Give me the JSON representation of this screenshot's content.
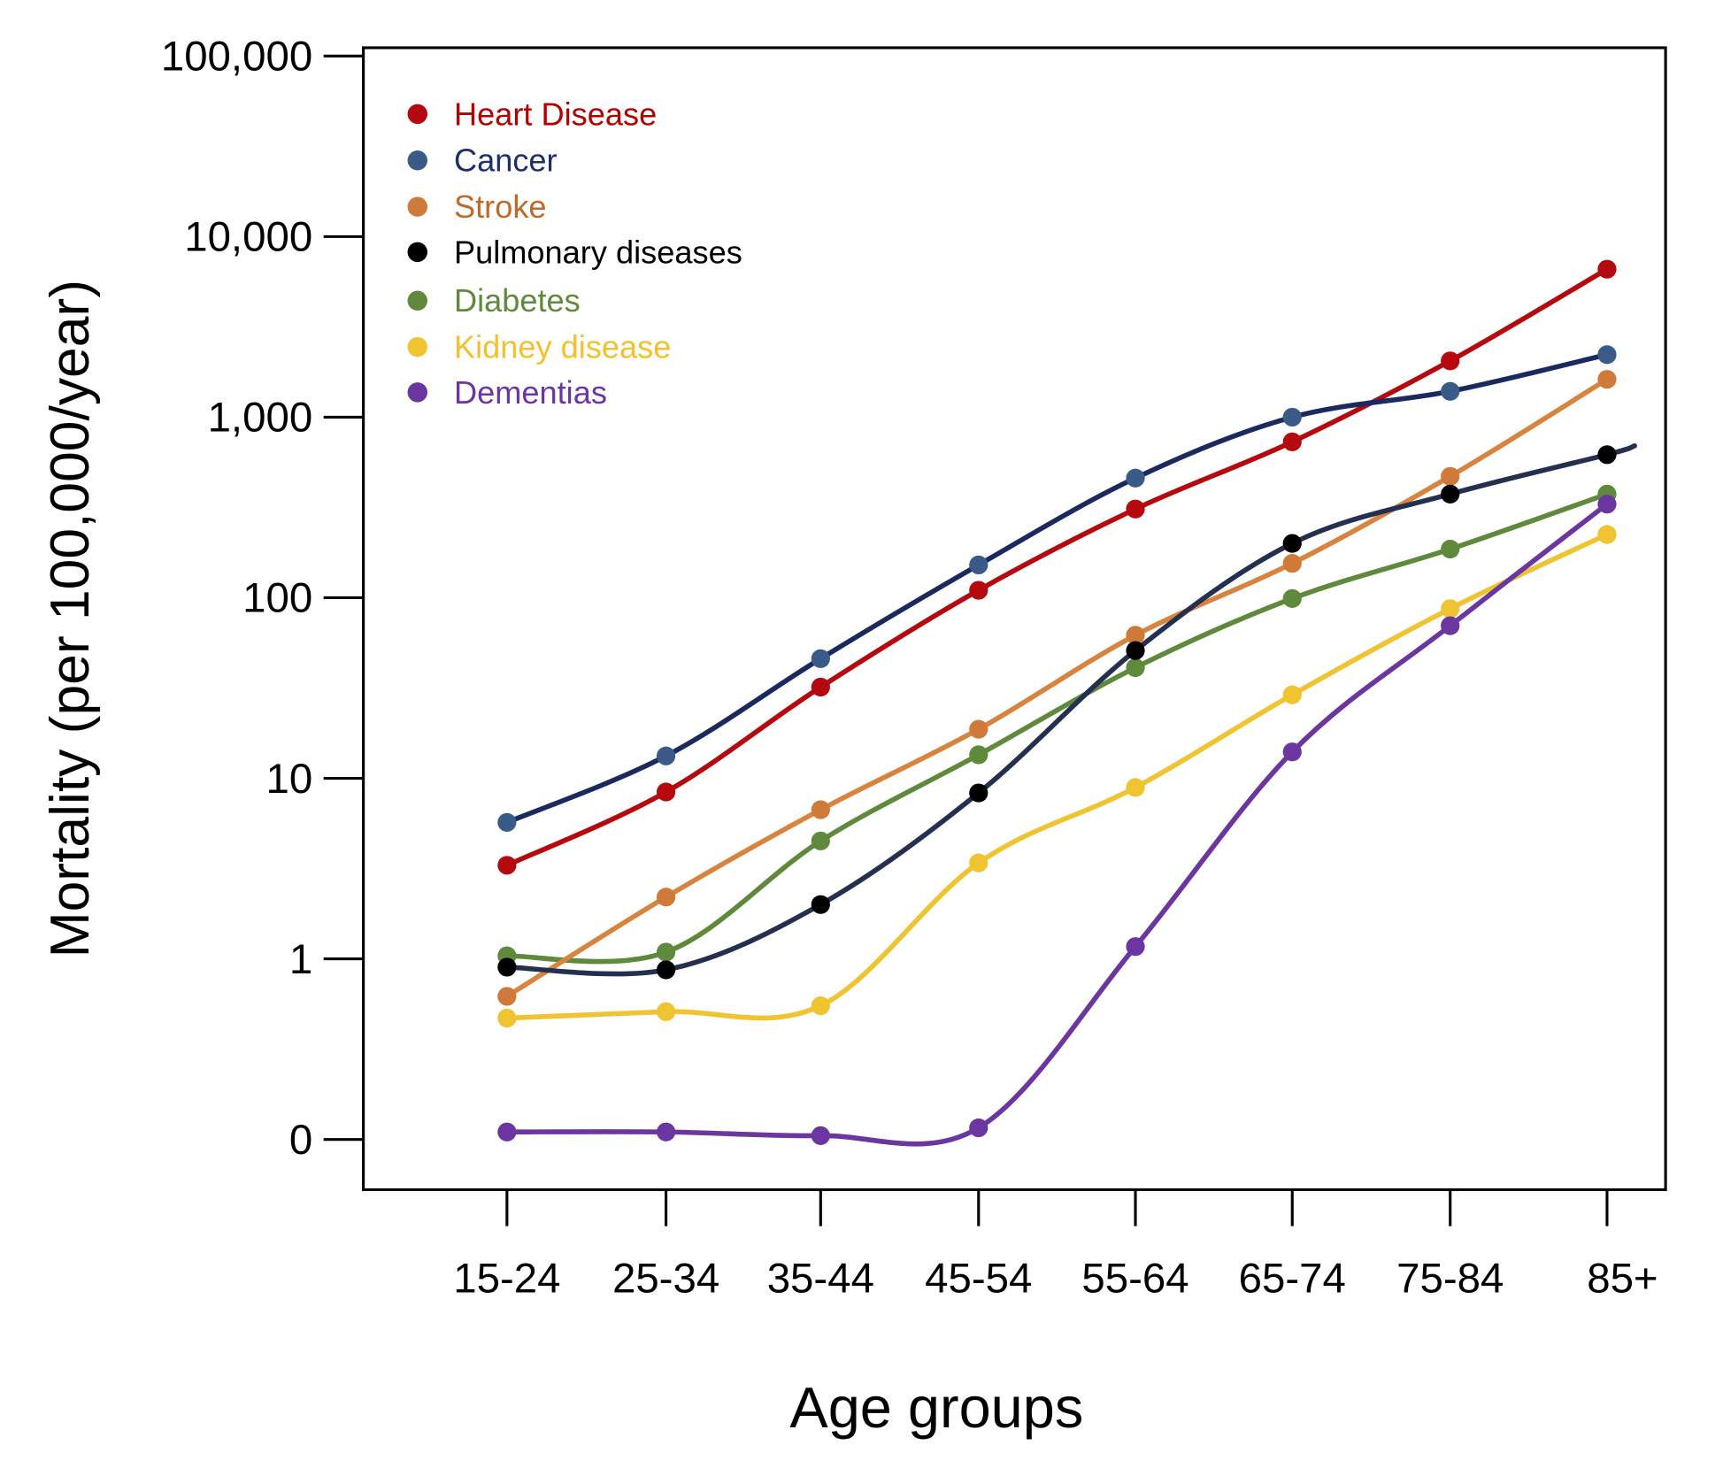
{
  "chart_data": {
    "type": "line",
    "title": "",
    "xlabel": "Age groups",
    "ylabel": "Mortality (per 100,000/year)",
    "yscale": "log",
    "ylim": [
      0.1,
      100000
    ],
    "yticks": [
      100000,
      10000,
      1000,
      100,
      10,
      1,
      0.1
    ],
    "ytick_labels": [
      "100,000",
      "10,000",
      "1,000",
      "100",
      "10",
      "1",
      "0"
    ],
    "categories": [
      "15-24",
      "25-34",
      "35-44",
      "45-54",
      "55-64",
      "65-74",
      "75-84",
      "85+"
    ],
    "grid": false,
    "legend_position": "top-left",
    "series": [
      {
        "name": "Heart Disease",
        "line_color": "#b5080f",
        "marker_color": "#b5080f",
        "text_color": "#b20000",
        "values": [
          3.3,
          8.4,
          32,
          110,
          310,
          730,
          2050,
          6600
        ]
      },
      {
        "name": "Cancer",
        "line_color": "#1b2a5e",
        "marker_color": "#3a5a88",
        "text_color": "#1b2e6e",
        "values": [
          5.7,
          13.3,
          46,
          152,
          460,
          1000,
          1390,
          2220
        ]
      },
      {
        "name": "Stroke",
        "line_color": "#d9843e",
        "marker_color": "#d07a3a",
        "text_color": "#c06a2a",
        "values": [
          0.62,
          2.2,
          6.7,
          18.7,
          62,
          155,
          470,
          1620
        ]
      },
      {
        "name": "Pulmonary diseases",
        "line_color": "#24304f",
        "marker_color": "#000000",
        "text_color": "#000000",
        "values": [
          0.9,
          0.87,
          2.0,
          8.3,
          51,
          200,
          375,
          620
        ]
      },
      {
        "name": "Diabetes",
        "line_color": "#5f8a3c",
        "marker_color": "#5f8a3c",
        "text_color": "#5f8a3c",
        "values": [
          1.04,
          1.09,
          4.5,
          13.5,
          41,
          99,
          186,
          375
        ]
      },
      {
        "name": "Kidney disease",
        "line_color": "#f0c330",
        "marker_color": "#f0c330",
        "text_color": "#f2c12e",
        "values": [
          0.47,
          0.51,
          0.55,
          3.4,
          8.9,
          29,
          87,
          224
        ]
      },
      {
        "name": "Dementias",
        "line_color": "#6b36a0",
        "marker_color": "#6b36a0",
        "text_color": "#6a35a5",
        "values": [
          0.11,
          0.11,
          0.105,
          0.116,
          1.17,
          14,
          70,
          330
        ]
      }
    ]
  }
}
